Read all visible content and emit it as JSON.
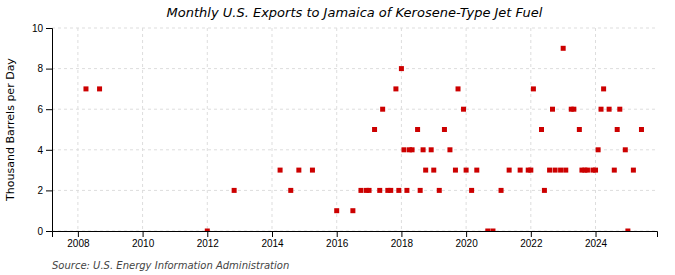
{
  "chart_data": {
    "type": "scatter",
    "title": "Monthly U.S. Exports to Jamaica of Kerosene-Type Jet Fuel",
    "y_label": "Thousand Barrels per Day",
    "annotations": [
      "Source: U.S. Energy Information Administration"
    ],
    "color": "#cc0000",
    "marker": "square",
    "grid": true,
    "xlim": [
      2007.2,
      2025.9
    ],
    "ylim": [
      0,
      10
    ],
    "xticks": [
      2008,
      2010,
      2012,
      2014,
      2016,
      2018,
      2020,
      2022,
      2024
    ],
    "yticks": [
      0,
      2,
      4,
      6,
      8,
      10
    ],
    "x": [
      2008.25,
      2008.67,
      2012.0,
      2012.83,
      2014.25,
      2014.58,
      2014.83,
      2015.25,
      2016.0,
      2016.5,
      2016.75,
      2016.92,
      2017.0,
      2017.17,
      2017.33,
      2017.42,
      2017.58,
      2017.67,
      2017.83,
      2017.92,
      2018.0,
      2018.08,
      2018.17,
      2018.25,
      2018.33,
      2018.5,
      2018.58,
      2018.67,
      2018.75,
      2018.92,
      2019.0,
      2019.17,
      2019.33,
      2019.5,
      2019.67,
      2019.75,
      2019.92,
      2020.0,
      2020.17,
      2020.33,
      2020.67,
      2020.83,
      2021.08,
      2021.33,
      2021.67,
      2021.92,
      2022.0,
      2022.08,
      2022.33,
      2022.42,
      2022.58,
      2022.67,
      2022.75,
      2022.92,
      2023.0,
      2023.08,
      2023.25,
      2023.33,
      2023.5,
      2023.58,
      2023.67,
      2023.75,
      2023.92,
      2024.0,
      2024.08,
      2024.17,
      2024.25,
      2024.42,
      2024.58,
      2024.67,
      2024.75,
      2024.92,
      2025.0,
      2025.17,
      2025.42
    ],
    "values": [
      7,
      7,
      0,
      2,
      3,
      2,
      3,
      3,
      1,
      1,
      2,
      2,
      2,
      5,
      2,
      6,
      2,
      2,
      7,
      2,
      8,
      4,
      2,
      4,
      4,
      5,
      2,
      4,
      3,
      4,
      3,
      2,
      5,
      4,
      3,
      7,
      6,
      3,
      2,
      3,
      0,
      0,
      2,
      3,
      3,
      3,
      3,
      7,
      5,
      2,
      3,
      6,
      3,
      3,
      9,
      3,
      6,
      6,
      5,
      3,
      3,
      3,
      3,
      3,
      4,
      6,
      7,
      6,
      3,
      5,
      6,
      4,
      0,
      3,
      5
    ]
  }
}
